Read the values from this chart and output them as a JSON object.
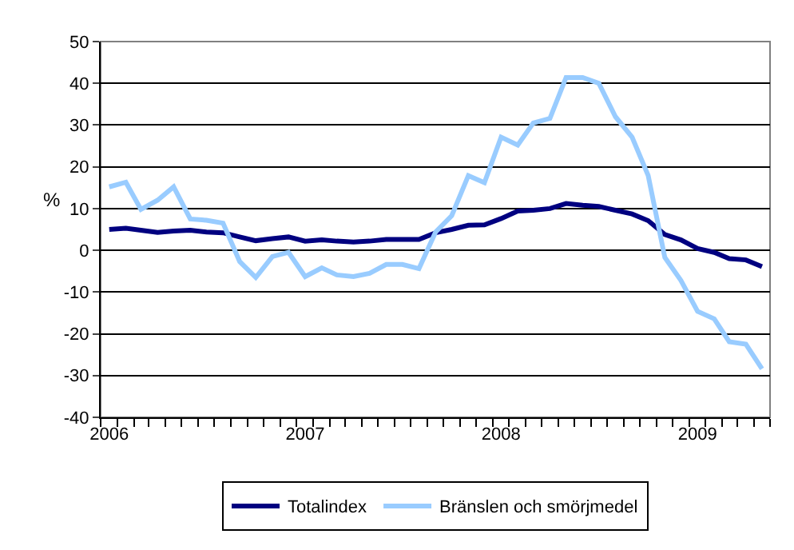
{
  "chart_data": {
    "type": "line",
    "ylabel": "%",
    "x": [
      "2006-01",
      "2006-02",
      "2006-03",
      "2006-04",
      "2006-05",
      "2006-06",
      "2006-07",
      "2006-08",
      "2006-09",
      "2006-10",
      "2006-11",
      "2006-12",
      "2007-01",
      "2007-02",
      "2007-03",
      "2007-04",
      "2007-05",
      "2007-06",
      "2007-07",
      "2007-08",
      "2007-09",
      "2007-10",
      "2007-11",
      "2007-12",
      "2008-01",
      "2008-02",
      "2008-03",
      "2008-04",
      "2008-05",
      "2008-06",
      "2008-07",
      "2008-08",
      "2008-09",
      "2008-10",
      "2008-11",
      "2008-12",
      "2009-01",
      "2009-02",
      "2009-03",
      "2009-04",
      "2009-05"
    ],
    "series": [
      {
        "name": "Totalindex",
        "color": "#000080",
        "values": [
          5.0,
          5.3,
          4.8,
          4.3,
          4.6,
          4.8,
          4.4,
          4.2,
          3.2,
          2.3,
          2.8,
          3.2,
          2.2,
          2.5,
          2.2,
          2.0,
          2.2,
          2.6,
          2.6,
          2.6,
          4.2,
          5.0,
          6.0,
          6.1,
          7.6,
          9.4,
          9.6,
          10.0,
          11.2,
          10.8,
          10.5,
          9.6,
          8.7,
          7.1,
          3.8,
          2.5,
          0.4,
          -0.5,
          -2.0,
          -2.3,
          -3.9
        ]
      },
      {
        "name": "Bränslen och smörjmedel",
        "color": "#99ccff",
        "values": [
          15.2,
          16.3,
          9.8,
          12.0,
          15.2,
          7.5,
          7.2,
          6.5,
          -2.7,
          -6.5,
          -1.5,
          -0.5,
          -6.3,
          -4.2,
          -5.9,
          -6.3,
          -5.5,
          -3.4,
          -3.4,
          -4.4,
          4.4,
          8.3,
          17.9,
          16.2,
          27.1,
          25.2,
          30.5,
          31.6,
          41.4,
          41.4,
          40.0,
          32.0,
          27.1,
          17.9,
          -1.7,
          -7.2,
          -14.6,
          -16.4,
          -21.9,
          -22.5,
          -28.4
        ]
      }
    ],
    "xlim": [
      "2005-12-16",
      "2009-05-16"
    ],
    "xticks": [
      {
        "value": "2006-01",
        "label": "2006"
      },
      {
        "value": "2007-01",
        "label": "2007"
      },
      {
        "value": "2008-01",
        "label": "2008"
      },
      {
        "value": "2009-01",
        "label": "2009"
      }
    ],
    "ylim": [
      -40,
      50
    ],
    "yticks": [
      -40,
      -30,
      -20,
      -10,
      0,
      10,
      20,
      30,
      40,
      50
    ],
    "grid": "y",
    "legend": "bottom",
    "marker": "none",
    "line_style": "solid"
  }
}
